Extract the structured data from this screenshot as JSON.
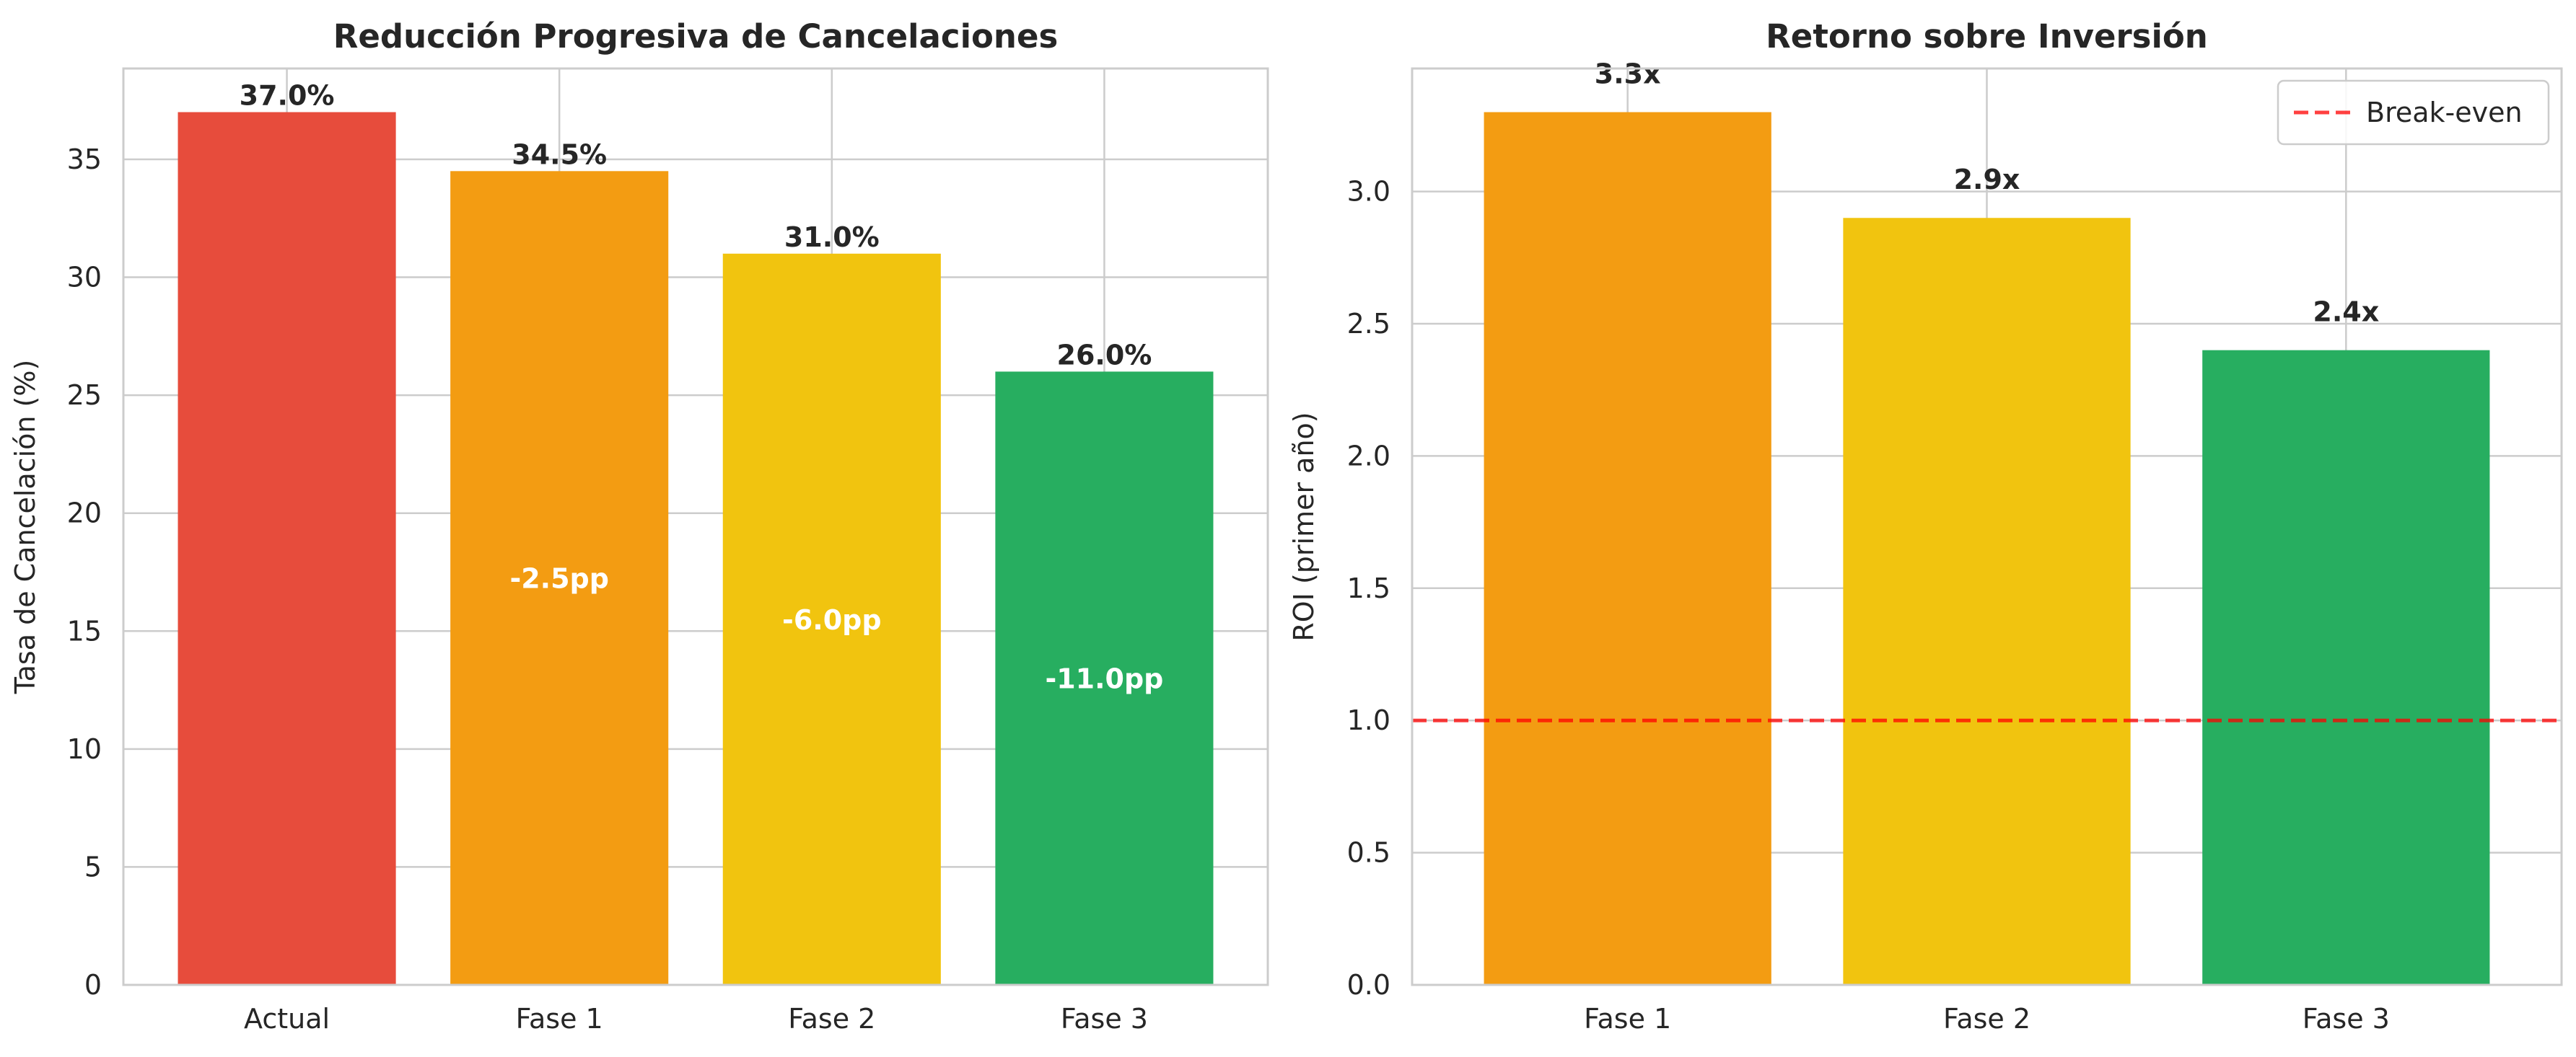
{
  "chart_data": [
    {
      "type": "bar",
      "title": "Reducción Progresiva de Cancelaciones",
      "xlabel": "",
      "ylabel": "Tasa de Cancelación (%)",
      "categories": [
        "Actual",
        "Fase 1",
        "Fase 2",
        "Fase 3"
      ],
      "values": [
        37.0,
        34.5,
        31.0,
        26.0
      ],
      "bar_labels": [
        "37.0%",
        "34.5%",
        "31.0%",
        "26.0%"
      ],
      "inner_labels": [
        "",
        "-2.5pp",
        "-6.0pp",
        "-11.0pp"
      ],
      "colors": [
        "#e74c3c",
        "#f39c12",
        "#f1c40f",
        "#27ae60"
      ],
      "ylim": [
        0,
        38.85
      ],
      "yticks": [
        0,
        5,
        10,
        15,
        20,
        25,
        30,
        35
      ],
      "grid": true
    },
    {
      "type": "bar",
      "title": "Retorno sobre Inversión",
      "xlabel": "",
      "ylabel": "ROI (primer año)",
      "categories": [
        "Fase 1",
        "Fase 2",
        "Fase 3"
      ],
      "values": [
        3.3,
        2.9,
        2.4
      ],
      "bar_labels": [
        "3.3x",
        "2.9x",
        "2.4x"
      ],
      "colors": [
        "#f39c12",
        "#f1c40f",
        "#27ae60"
      ],
      "ylim": [
        0,
        3.465
      ],
      "yticks": [
        0.0,
        0.5,
        1.0,
        1.5,
        2.0,
        2.5,
        3.0
      ],
      "reference_line": {
        "y": 1.0,
        "label": "Break-even",
        "color": "#ff0000",
        "style": "dashed"
      },
      "legend": {
        "position": "top-right",
        "entries": [
          "Break-even"
        ]
      },
      "grid": true
    }
  ]
}
